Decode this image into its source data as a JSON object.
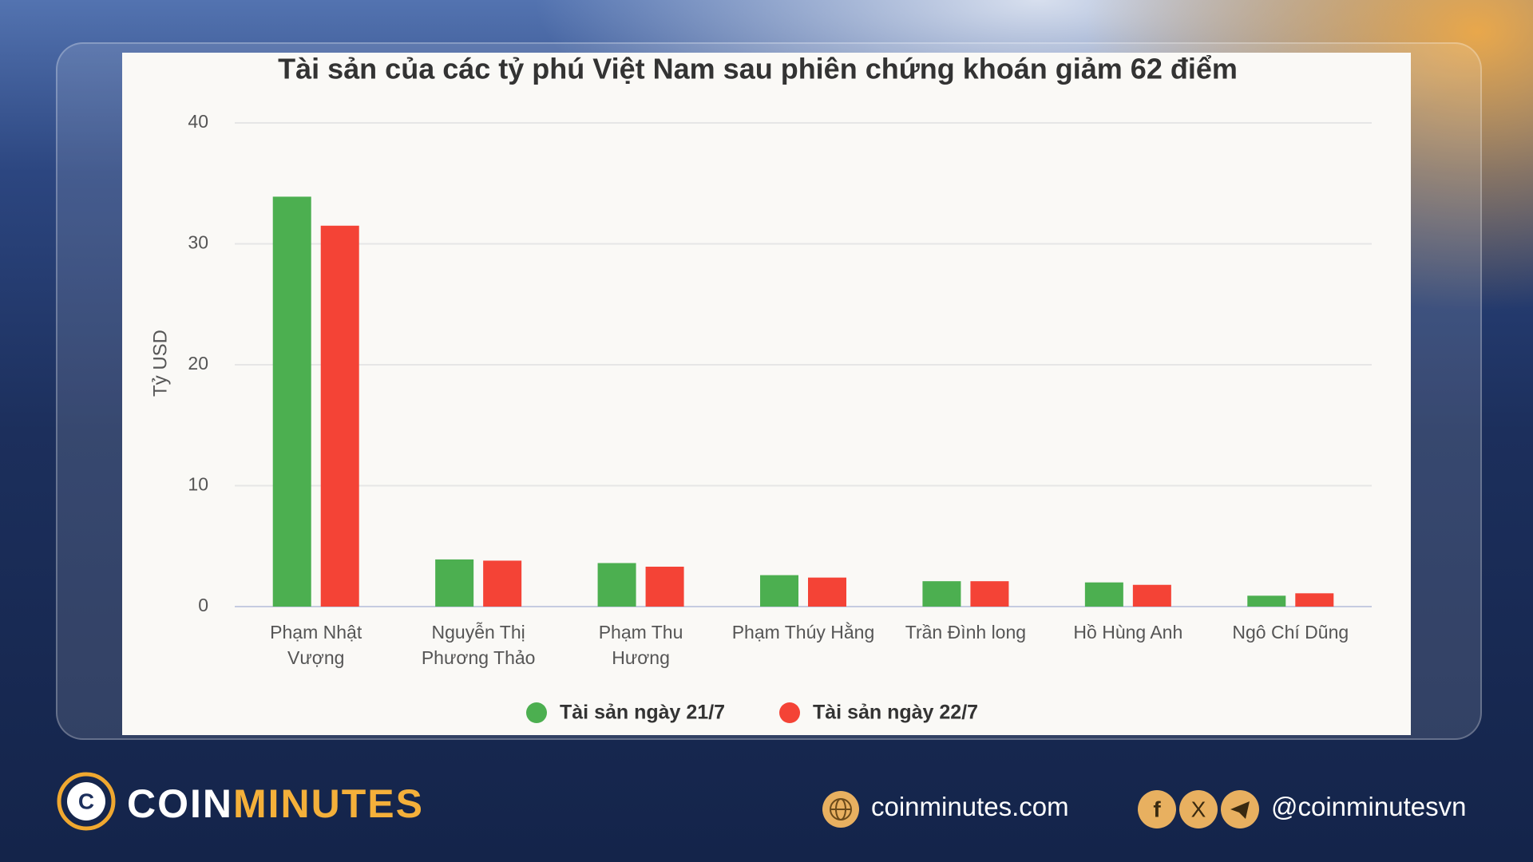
{
  "chart_data": {
    "type": "bar",
    "title": "Tài sản của các tỷ phú Việt Nam sau phiên chứng khoán giảm 62 điểm",
    "y_label": "Tỷ USD",
    "categories": [
      [
        "Phạm Nhật",
        "Vượng"
      ],
      [
        "Nguyễn Thị",
        "Phương Thảo"
      ],
      [
        "Phạm Thu",
        "Hương"
      ],
      [
        "Phạm Thúy Hằng"
      ],
      [
        "Trần Đình long"
      ],
      [
        "Hồ Hùng Anh"
      ],
      [
        "Ngô Chí Dũng"
      ]
    ],
    "series": [
      {
        "name": "Tài sản ngày 21/7",
        "color": "#4caf50",
        "values": [
          33.9,
          3.9,
          3.6,
          2.6,
          2.1,
          2.0,
          0.9
        ]
      },
      {
        "name": "Tài sản ngày 22/7",
        "color": "#f44336",
        "values": [
          31.5,
          3.8,
          3.3,
          2.4,
          2.1,
          1.8,
          1.1
        ]
      }
    ],
    "ylim": [
      0,
      40
    ],
    "yticks": [
      0,
      10,
      20,
      30,
      40
    ],
    "grid": true
  },
  "footer": {
    "brand_a": "COIN",
    "brand_b": "MINUTES",
    "website": "coinminutes.com",
    "handle": "@coinminutesvn"
  }
}
